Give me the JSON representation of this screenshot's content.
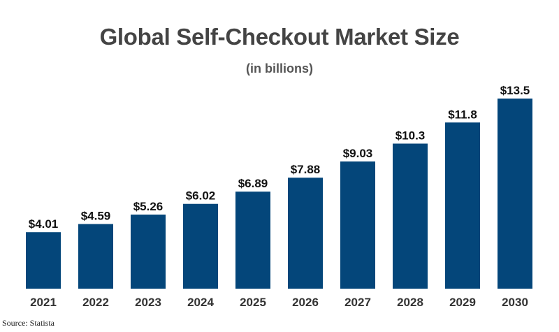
{
  "title": "Global Self-Checkout Market Size",
  "subtitle": "(in billions)",
  "source": "Source: Statista",
  "colors": {
    "bar": "#04467A",
    "label": "#111111",
    "tick": "#333333"
  },
  "chart_data": {
    "type": "bar",
    "categories": [
      "2021",
      "2022",
      "2023",
      "2024",
      "2025",
      "2026",
      "2027",
      "2028",
      "2029",
      "2030"
    ],
    "values": [
      4.01,
      4.59,
      5.26,
      6.02,
      6.89,
      7.88,
      9.03,
      10.3,
      11.8,
      13.5
    ],
    "data_labels": [
      "$4.01",
      "$4.59",
      "$5.26",
      "$6.02",
      "$6.89",
      "$7.88",
      "$9.03",
      "$10.3",
      "$11.8",
      "$13.5"
    ],
    "title": "Global Self-Checkout Market Size",
    "subtitle": "(in billions)",
    "xlabel": "",
    "ylabel": "",
    "ylim": [
      0,
      13.5
    ],
    "grid": false,
    "legend": "none"
  }
}
